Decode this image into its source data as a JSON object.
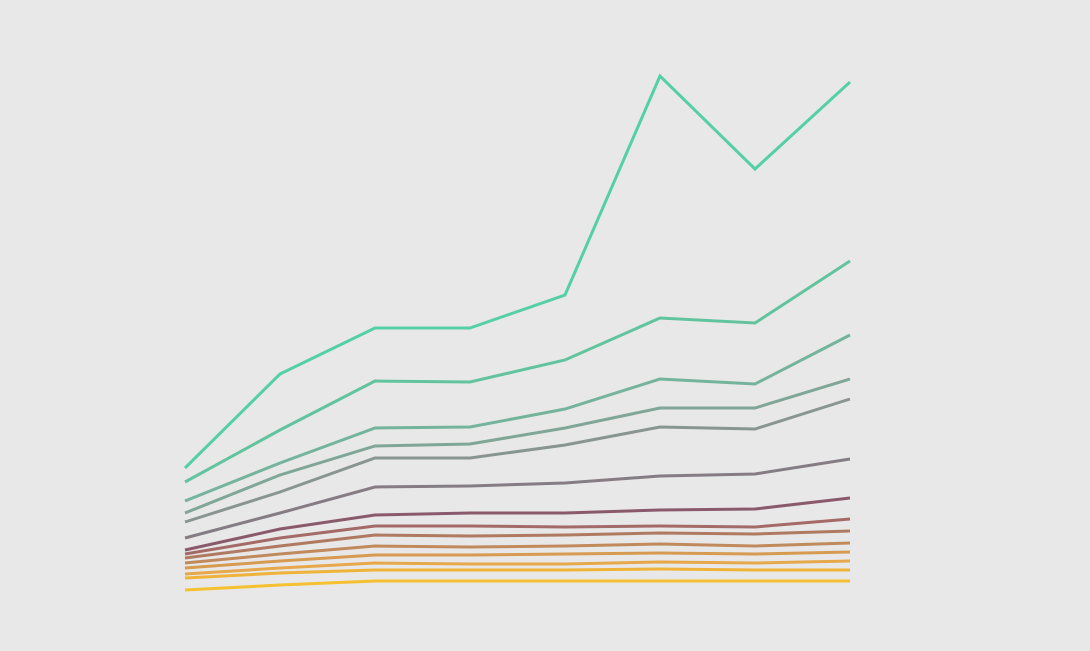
{
  "background": "#e8e8e8",
  "chart_data": {
    "type": "line",
    "title": "",
    "xlabel": "",
    "ylabel": "",
    "axes_visible": false,
    "grid": false,
    "legend": "none",
    "x": [
      0,
      1,
      2,
      3,
      4,
      5,
      6,
      7
    ],
    "xlim": [
      0,
      7
    ],
    "ylim": [
      0,
      520
    ],
    "series": [
      {
        "color": "#f5c130",
        "values": [
          0,
          5,
          9,
          9,
          9,
          9,
          9,
          9
        ]
      },
      {
        "color": "#efb33a",
        "values": [
          12,
          17,
          20,
          20,
          20,
          21,
          20,
          20
        ]
      },
      {
        "color": "#e6a84a",
        "values": [
          16,
          22,
          27,
          26,
          26,
          28,
          27,
          29
        ]
      },
      {
        "color": "#d69b50",
        "values": [
          22,
          29,
          35,
          35,
          36,
          37,
          36,
          38
        ]
      },
      {
        "color": "#c08a5c",
        "values": [
          27,
          36,
          44,
          43,
          44,
          46,
          44,
          47
        ]
      },
      {
        "color": "#b07a60",
        "values": [
          32,
          44,
          55,
          54,
          55,
          57,
          56,
          59
        ]
      },
      {
        "color": "#a46a68",
        "values": [
          36,
          52,
          64,
          64,
          63,
          64,
          63,
          71
        ]
      },
      {
        "color": "#8a5a6c",
        "values": [
          40,
          61,
          75,
          77,
          77,
          80,
          81,
          92
        ]
      },
      {
        "color": "#867c84",
        "values": [
          52,
          77,
          103,
          104,
          107,
          114,
          116,
          131
        ]
      },
      {
        "color": "#889590",
        "values": [
          68,
          98,
          132,
          132,
          145,
          163,
          161,
          191
        ]
      },
      {
        "color": "#7fa696",
        "values": [
          77,
          115,
          144,
          146,
          162,
          182,
          182,
          211
        ]
      },
      {
        "color": "#75b49c",
        "values": [
          89,
          127,
          162,
          163,
          181,
          211,
          206,
          255
        ]
      },
      {
        "color": "#62c49e",
        "values": [
          108,
          160,
          209,
          208,
          230,
          272,
          267,
          329
        ]
      },
      {
        "color": "#55d0a6",
        "values": [
          122,
          216,
          262,
          262,
          295,
          514,
          421,
          508
        ]
      }
    ]
  }
}
